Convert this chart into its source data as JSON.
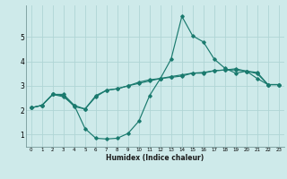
{
  "xlabel": "Humidex (Indice chaleur)",
  "background_color": "#ceeaea",
  "grid_color": "#b0d5d5",
  "line_color": "#1a7a6e",
  "xlim": [
    -0.5,
    23.5
  ],
  "ylim": [
    0.5,
    6.3
  ],
  "xticks": [
    0,
    1,
    2,
    3,
    4,
    5,
    6,
    7,
    8,
    9,
    10,
    11,
    12,
    13,
    14,
    15,
    16,
    17,
    18,
    19,
    20,
    21,
    22,
    23
  ],
  "yticks": [
    1,
    2,
    3,
    4,
    5
  ],
  "line1_x": [
    0,
    1,
    2,
    3,
    4,
    5,
    6,
    7,
    8,
    9,
    10,
    11,
    12,
    13,
    14,
    15,
    16,
    17,
    18,
    19,
    20,
    21,
    22,
    23
  ],
  "line1_y": [
    2.1,
    2.2,
    2.65,
    2.65,
    2.2,
    1.25,
    0.85,
    0.82,
    0.85,
    1.05,
    1.55,
    2.6,
    3.3,
    4.1,
    5.85,
    5.05,
    4.8,
    4.1,
    3.72,
    3.52,
    3.6,
    3.3,
    3.05,
    3.05
  ],
  "line2_x": [
    0,
    1,
    2,
    3,
    4,
    5,
    6,
    7,
    8,
    9,
    10,
    11,
    12,
    13,
    14,
    15,
    16,
    17,
    18,
    19,
    20,
    21,
    22,
    23
  ],
  "line2_y": [
    2.1,
    2.2,
    2.65,
    2.6,
    2.15,
    2.05,
    2.55,
    2.82,
    2.88,
    3.0,
    3.1,
    3.2,
    3.3,
    3.35,
    3.4,
    3.52,
    3.55,
    3.62,
    3.65,
    3.65,
    3.6,
    3.55,
    3.05,
    3.05
  ],
  "line3_x": [
    0,
    1,
    2,
    3,
    4,
    5,
    6,
    7,
    8,
    9,
    10,
    11,
    12,
    13,
    14,
    15,
    16,
    17,
    18,
    19,
    20,
    21,
    22,
    23
  ],
  "line3_y": [
    2.1,
    2.2,
    2.65,
    2.55,
    2.2,
    2.05,
    2.6,
    2.82,
    2.88,
    3.0,
    3.15,
    3.25,
    3.3,
    3.38,
    3.45,
    3.52,
    3.52,
    3.62,
    3.65,
    3.7,
    3.6,
    3.5,
    3.05,
    3.05
  ]
}
